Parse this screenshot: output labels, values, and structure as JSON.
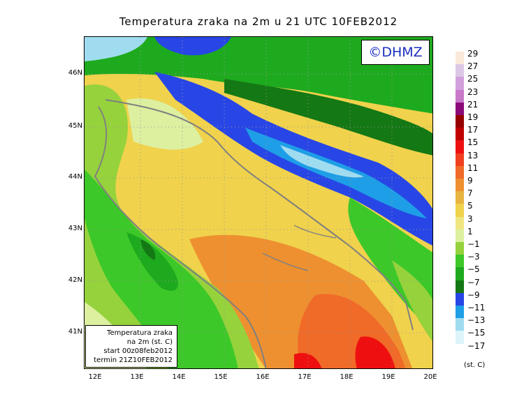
{
  "map": {
    "title": "Temperatura zraka na 2m u 21 UTC 10FEB2012",
    "credit": "©DHMZ",
    "lat_labels": [
      "46N",
      "45N",
      "44N",
      "43N",
      "42N",
      "41N"
    ],
    "lon_labels": [
      "12E",
      "13E",
      "14E",
      "15E",
      "16E",
      "17E",
      "18E",
      "19E",
      "20E"
    ],
    "info_box": [
      "Temperatura zraka",
      "na 2m (st. C)",
      "start 00z08feb2012",
      "termin 21Z10FEB2012"
    ],
    "units": "(st. C)"
  },
  "legend": {
    "labels": [
      "29",
      "27",
      "25",
      "23",
      "21",
      "19",
      "17",
      "15",
      "13",
      "11",
      "9",
      "7",
      "5",
      "3",
      "1",
      "−1",
      "−3",
      "−5",
      "−7",
      "−9",
      "−11",
      "−13",
      "−15",
      "−17"
    ],
    "colors": [
      "#fae8d8",
      "#dcc8e6",
      "#d2a0dc",
      "#c878c8",
      "#8a0a7a",
      "#960000",
      "#c00000",
      "#ee1010",
      "#f04020",
      "#f06a28",
      "#ee9030",
      "#e8b440",
      "#f0d24c",
      "#f0e680",
      "#dcf0a0",
      "#96d23c",
      "#3cc828",
      "#1eaa1e",
      "#147814",
      "#2846e6",
      "#1e9ee6",
      "#a0dcf0",
      "#dcf5fa",
      "#ffffff"
    ]
  }
}
